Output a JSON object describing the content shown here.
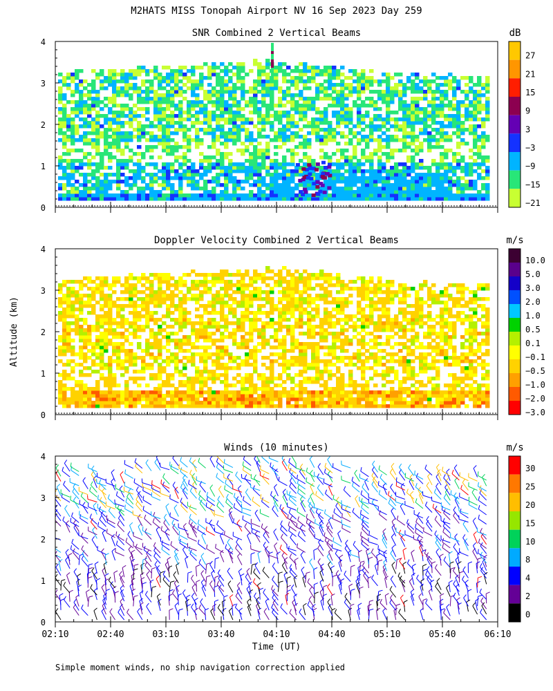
{
  "figure": {
    "title": "M2HATS MISS Tonopah Airport NV  16 Sep 2023 Day 259",
    "ylabel": "Altitude (km)",
    "xlabel": "Time (UT)",
    "x_ticks": [
      "02:10",
      "02:40",
      "03:10",
      "03:40",
      "04:10",
      "04:40",
      "05:10",
      "05:40",
      "06:10"
    ],
    "footnote": "Simple moment winds, no ship navigation correction applied"
  },
  "chart_data": [
    {
      "type": "heatmap",
      "title": "SNR Combined 2 Vertical Beams",
      "unit": "dB",
      "xlim": [
        "02:10",
        "06:10"
      ],
      "ylim": [
        0,
        4
      ],
      "yticks": [
        0,
        1,
        2,
        3,
        4
      ],
      "colorbar_labels": [
        "27",
        "21",
        "15",
        "9",
        "3",
        "−3",
        "−9",
        "−15",
        "−21"
      ],
      "colorbar_colors": [
        "#ffc800",
        "#ff9600",
        "#ff1e00",
        "#8c0050",
        "#6400b4",
        "#1432ff",
        "#00b4ff",
        "#28e678",
        "#c8ff32"
      ],
      "data_top_km": [
        3.2,
        3.3,
        3.35,
        3.4,
        3.45,
        3.5,
        3.4,
        3.3,
        3.2,
        3.15,
        3.1
      ]
    },
    {
      "type": "heatmap",
      "title": "Doppler Velocity Combined 2 Vertical Beams",
      "unit": "m/s",
      "xlim": [
        "02:10",
        "06:10"
      ],
      "ylim": [
        0,
        4
      ],
      "yticks": [
        0,
        1,
        2,
        3,
        4
      ],
      "colorbar_labels": [
        "10.0",
        "5.0",
        "3.0",
        "2.0",
        "1.0",
        "0.5",
        "0.1",
        "−0.1",
        "−0.5",
        "−1.0",
        "−2.0",
        "−3.0"
      ],
      "colorbar_colors": [
        "#3c0032",
        "#5a008c",
        "#1400c8",
        "#0050ff",
        "#00c8ff",
        "#00d200",
        "#b4f000",
        "#ffff00",
        "#ffd200",
        "#ffa000",
        "#ff5a00",
        "#ff0000"
      ]
    },
    {
      "type": "scatter",
      "title": "Winds (10 minutes)",
      "unit": "m/s",
      "xlim": [
        "02:10",
        "06:10"
      ],
      "ylim": [
        0,
        4
      ],
      "yticks": [
        0,
        1,
        2,
        3,
        4
      ],
      "colorbar_labels": [
        "30",
        "25",
        "20",
        "15",
        "10",
        "8",
        "4",
        "2",
        "0"
      ],
      "colorbar_colors": [
        "#ff0000",
        "#ff7800",
        "#ffbe00",
        "#96e600",
        "#00d25a",
        "#00aaff",
        "#0000ff",
        "#640096",
        "#000000"
      ]
    }
  ]
}
